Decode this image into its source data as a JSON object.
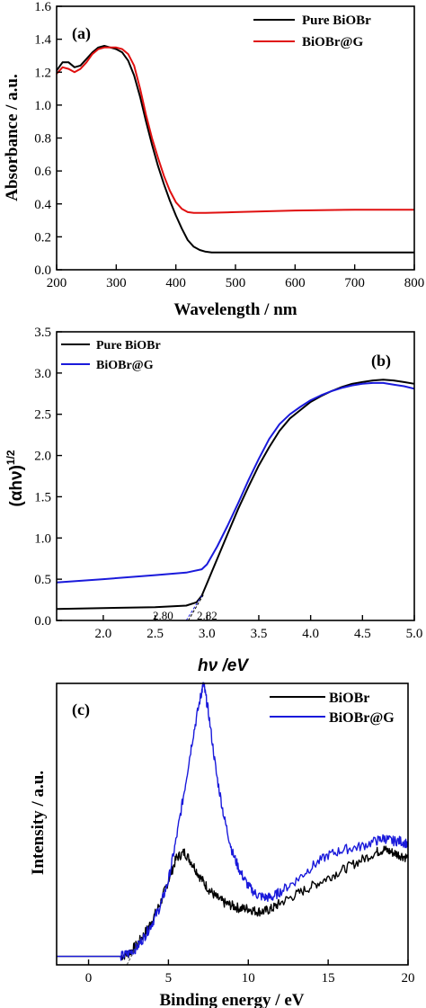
{
  "colors": {
    "black": "#000000",
    "red": "#e01010",
    "blue": "#1a1adb"
  },
  "chart_data": [
    {
      "type": "line",
      "panel_label": "(a)",
      "xlabel": "Wavelength / nm",
      "ylabel": "Absorbance / a.u.",
      "xlim": [
        200,
        800
      ],
      "ylim": [
        0.0,
        1.6
      ],
      "xticks": [
        "200",
        "300",
        "400",
        "500",
        "600",
        "700",
        "800"
      ],
      "yticks": [
        "0.0",
        "0.2",
        "0.4",
        "0.6",
        "0.8",
        "1.0",
        "1.2",
        "1.4",
        "1.6"
      ],
      "legend_position": "top-right",
      "series": [
        {
          "name": "Pure BiOBr",
          "color": "#000000",
          "x": [
            200,
            210,
            220,
            230,
            240,
            250,
            260,
            270,
            280,
            290,
            300,
            310,
            320,
            330,
            340,
            350,
            360,
            370,
            380,
            390,
            400,
            410,
            420,
            430,
            440,
            450,
            460,
            480,
            500,
            600,
            700,
            800
          ],
          "y": [
            1.21,
            1.26,
            1.26,
            1.23,
            1.24,
            1.28,
            1.32,
            1.35,
            1.36,
            1.35,
            1.34,
            1.32,
            1.27,
            1.18,
            1.05,
            0.9,
            0.76,
            0.63,
            0.52,
            0.42,
            0.33,
            0.25,
            0.18,
            0.14,
            0.12,
            0.11,
            0.105,
            0.105,
            0.105,
            0.105,
            0.105,
            0.105
          ]
        },
        {
          "name": "BiOBr@G",
          "color": "#e01010",
          "x": [
            200,
            210,
            220,
            230,
            240,
            250,
            260,
            270,
            280,
            290,
            300,
            310,
            320,
            330,
            340,
            350,
            360,
            370,
            380,
            390,
            400,
            410,
            420,
            430,
            440,
            450,
            500,
            600,
            700,
            800
          ],
          "y": [
            1.19,
            1.23,
            1.22,
            1.2,
            1.22,
            1.26,
            1.31,
            1.34,
            1.35,
            1.35,
            1.35,
            1.34,
            1.31,
            1.24,
            1.1,
            0.94,
            0.8,
            0.68,
            0.57,
            0.48,
            0.41,
            0.37,
            0.35,
            0.345,
            0.345,
            0.345,
            0.35,
            0.36,
            0.365,
            0.365
          ]
        }
      ]
    },
    {
      "type": "line",
      "panel_label": "(b)",
      "xlabel": "hν /eV",
      "ylabel": "(αhν)1/2",
      "ylabel_main": "(αhν)",
      "ylabel_sup": "1/2",
      "xlim": [
        1.55,
        5.0
      ],
      "ylim": [
        0.0,
        3.5
      ],
      "xticks": [
        "2.0",
        "2.5",
        "3.0",
        "3.5",
        "4.0",
        "4.5",
        "5.0"
      ],
      "yticks": [
        "0.0",
        "0.5",
        "1.0",
        "1.5",
        "2.0",
        "2.5",
        "3.0",
        "3.5"
      ],
      "legend_position": "top-left",
      "annotations": [
        {
          "text": "2.80",
          "x": 2.8
        },
        {
          "text": "2.82",
          "x": 2.82
        }
      ],
      "series": [
        {
          "name": "Pure BiOBr",
          "color": "#000000",
          "x": [
            1.55,
            2.0,
            2.5,
            2.8,
            2.9,
            2.95,
            3.0,
            3.1,
            3.2,
            3.3,
            3.4,
            3.5,
            3.6,
            3.7,
            3.8,
            3.9,
            4.0,
            4.1,
            4.2,
            4.3,
            4.4,
            4.5,
            4.6,
            4.7,
            4.8,
            4.9,
            5.0
          ],
          "y": [
            0.14,
            0.15,
            0.16,
            0.18,
            0.22,
            0.3,
            0.45,
            0.75,
            1.05,
            1.35,
            1.62,
            1.88,
            2.1,
            2.3,
            2.45,
            2.55,
            2.65,
            2.72,
            2.78,
            2.83,
            2.87,
            2.89,
            2.91,
            2.92,
            2.91,
            2.89,
            2.87
          ]
        },
        {
          "name": "BiOBr@G",
          "color": "#1a1adb",
          "x": [
            1.55,
            2.0,
            2.5,
            2.8,
            2.95,
            3.0,
            3.1,
            3.2,
            3.3,
            3.4,
            3.5,
            3.6,
            3.7,
            3.8,
            3.9,
            4.0,
            4.1,
            4.2,
            4.3,
            4.4,
            4.5,
            4.6,
            4.7,
            4.8,
            4.9,
            5.0
          ],
          "y": [
            0.46,
            0.5,
            0.55,
            0.58,
            0.62,
            0.68,
            0.9,
            1.15,
            1.42,
            1.7,
            1.96,
            2.2,
            2.38,
            2.5,
            2.59,
            2.67,
            2.73,
            2.78,
            2.82,
            2.85,
            2.87,
            2.88,
            2.88,
            2.86,
            2.84,
            2.81
          ]
        }
      ]
    },
    {
      "type": "line",
      "panel_label": "(c)",
      "xlabel": "Binding energy / eV",
      "ylabel": "Intensity / a.u.",
      "xlim": [
        -2,
        20
      ],
      "ylim": [
        0,
        1
      ],
      "xticks": [
        "0",
        "5",
        "10",
        "15",
        "20"
      ],
      "yticks": [],
      "legend_position": "top-right",
      "series": [
        {
          "name": "BiOBr",
          "color": "#000000",
          "x": [
            -2,
            0,
            1,
            2,
            2.5,
            3,
            3.5,
            4,
            4.5,
            5,
            5.5,
            6,
            6.5,
            7,
            7.5,
            8,
            8.5,
            9,
            9.5,
            10,
            10.5,
            11,
            11.5,
            12,
            13,
            14,
            15,
            16,
            17,
            18,
            18.5,
            19,
            19.5,
            20
          ],
          "y": [
            0.03,
            0.03,
            0.03,
            0.03,
            0.04,
            0.07,
            0.11,
            0.16,
            0.22,
            0.3,
            0.38,
            0.4,
            0.36,
            0.31,
            0.27,
            0.24,
            0.22,
            0.21,
            0.2,
            0.2,
            0.19,
            0.19,
            0.2,
            0.22,
            0.25,
            0.28,
            0.31,
            0.34,
            0.37,
            0.4,
            0.41,
            0.4,
            0.39,
            0.38
          ]
        },
        {
          "name": "BiOBr@G",
          "color": "#1a1adb",
          "x": [
            -2,
            0,
            1,
            2,
            2.5,
            3,
            3.5,
            4,
            4.5,
            5,
            5.5,
            6,
            6.5,
            7,
            7.2,
            7.5,
            8,
            8.5,
            9,
            9.5,
            10,
            10.5,
            11,
            11.5,
            12,
            13,
            14,
            15,
            16,
            17,
            18,
            18.5,
            19,
            19.5,
            20
          ],
          "y": [
            0.03,
            0.03,
            0.03,
            0.03,
            0.04,
            0.06,
            0.1,
            0.15,
            0.21,
            0.3,
            0.45,
            0.62,
            0.8,
            0.95,
            1.0,
            0.9,
            0.68,
            0.52,
            0.4,
            0.33,
            0.28,
            0.25,
            0.24,
            0.24,
            0.26,
            0.3,
            0.35,
            0.39,
            0.41,
            0.42,
            0.44,
            0.45,
            0.44,
            0.44,
            0.43
          ]
        }
      ]
    }
  ]
}
